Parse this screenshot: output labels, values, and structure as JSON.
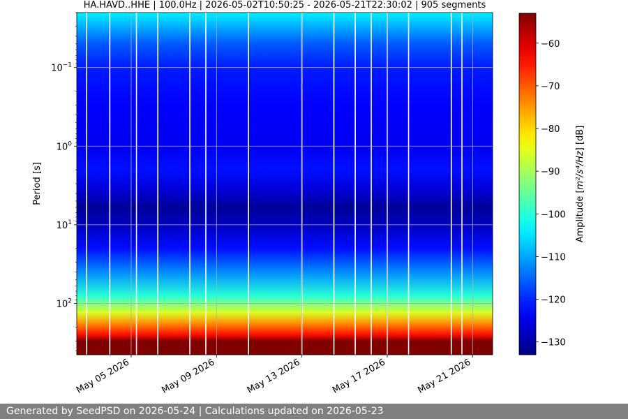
{
  "chart_data": {
    "type": "heatmap",
    "title": "HA.HAVD..HHE | 100.0Hz | 2026-05-02T10:50:25 - 2026-05-21T22:30:02 | 905 segments",
    "start": "2026-05-02T10:50:25",
    "end": "2026-05-21T22:30:02",
    "ylabel": "Period [s]",
    "y_scale": "log",
    "y_inverted": true,
    "ylim_period_s": [
      0.02,
      450
    ],
    "y_ticks": [
      {
        "value": 0.1,
        "base": "10",
        "exp": "−1"
      },
      {
        "value": 1,
        "base": "10",
        "exp": "0"
      },
      {
        "value": 10,
        "base": "10",
        "exp": "1"
      },
      {
        "value": 100,
        "base": "10",
        "exp": "2"
      }
    ],
    "x_ticks": [
      {
        "date": "2026-05-05",
        "label": "May 05 2026"
      },
      {
        "date": "2026-05-09",
        "label": "May 09 2026"
      },
      {
        "date": "2026-05-13",
        "label": "May 13 2026"
      },
      {
        "date": "2026-05-17",
        "label": "May 17 2026"
      },
      {
        "date": "2026-05-21",
        "label": "May 21 2026"
      }
    ],
    "grid": true,
    "colorbar": {
      "label_prefix": "Amplitude [",
      "label_math": "m²/s⁴/Hz",
      "label_suffix": "] [dB]",
      "colormap": "jet",
      "range": [
        -133,
        -53
      ],
      "ticks": [
        -60,
        -70,
        -80,
        -90,
        -100,
        -110,
        -120,
        -130
      ]
    },
    "amplitude_profile_db": [
      {
        "period_s": 0.02,
        "db": -104
      },
      {
        "period_s": 0.05,
        "db": -116
      },
      {
        "period_s": 0.1,
        "db": -121
      },
      {
        "period_s": 0.3,
        "db": -123
      },
      {
        "period_s": 1,
        "db": -124
      },
      {
        "period_s": 2,
        "db": -122
      },
      {
        "period_s": 3.5,
        "db": -126
      },
      {
        "period_s": 6,
        "db": -131
      },
      {
        "period_s": 10,
        "db": -128
      },
      {
        "period_s": 20,
        "db": -122
      },
      {
        "period_s": 40,
        "db": -112
      },
      {
        "period_s": 80,
        "db": -100
      },
      {
        "period_s": 130,
        "db": -86
      },
      {
        "period_s": 180,
        "db": -74
      },
      {
        "period_s": 250,
        "db": -64
      },
      {
        "period_s": 300,
        "db": -53
      },
      {
        "period_s": 450,
        "db": -53
      }
    ],
    "data_gaps": [
      "2026-05-02T22:00",
      "2026-05-04T00:00",
      "2026-05-05T06:00",
      "2026-05-06T06:00",
      "2026-05-07T18:00",
      "2026-05-08T12:00",
      "2026-05-10T12:00",
      "2026-05-13T00:00",
      "2026-05-14T12:00",
      "2026-05-15T12:00",
      "2026-05-16T06:00",
      "2026-05-17T00:00",
      "2026-05-18T00:00",
      "2026-05-20T00:00",
      "2026-05-20T12:00"
    ]
  },
  "footer": {
    "text": "Generated by SeedPSD on 2026-05-24 | Calculations updated on 2026-05-23"
  }
}
